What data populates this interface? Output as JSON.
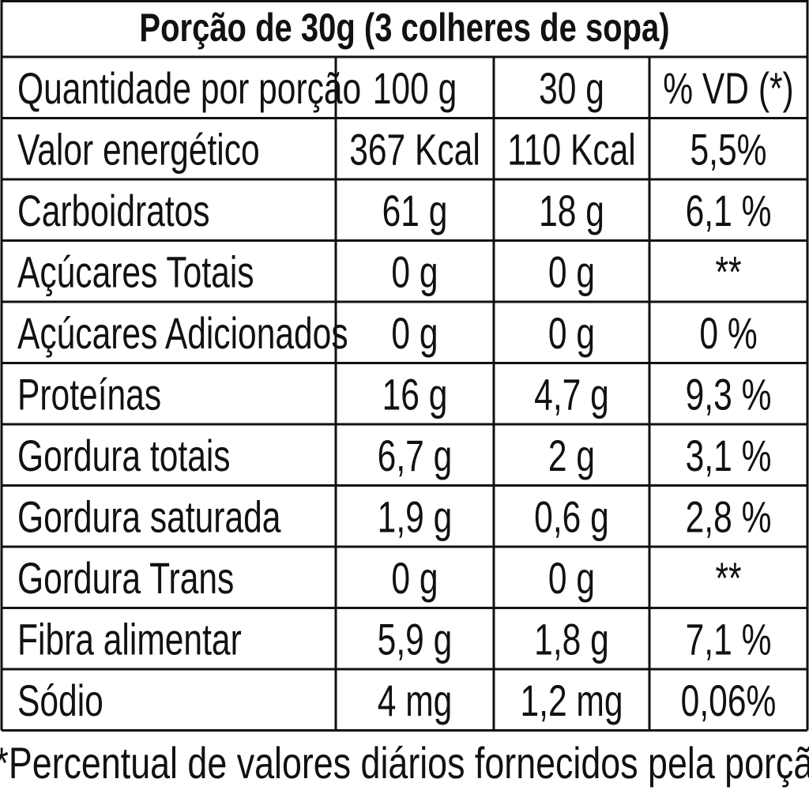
{
  "title": "Porção de 30g (3 colheres de sopa)",
  "table": {
    "header": [
      "Quantidade por porção",
      "100 g",
      "30 g",
      "% VD (*)"
    ],
    "rows": [
      [
        "Valor energético",
        "367 Kcal",
        "110 Kcal",
        "5,5%"
      ],
      [
        "Carboidratos",
        "61 g",
        "18 g",
        "6,1 %"
      ],
      [
        "Açúcares Totais",
        "0 g",
        "0 g",
        "**"
      ],
      [
        "Açúcares Adicionados",
        "0 g",
        "0 g",
        "0 %"
      ],
      [
        "Proteínas",
        "16 g",
        "4,7 g",
        "9,3 %"
      ],
      [
        "Gordura totais",
        "6,7 g",
        "2 g",
        "3,1 %"
      ],
      [
        "Gordura saturada",
        "1,9 g",
        "0,6 g",
        "2,8 %"
      ],
      [
        "Gordura Trans",
        "0 g",
        "0 g",
        "**"
      ],
      [
        "Fibra alimentar",
        "5,9 g",
        "1,8 g",
        "7,1 %"
      ],
      [
        "Sódio",
        "4 mg",
        "1,2 mg",
        "0,06%"
      ]
    ]
  },
  "footnote": "*Percentual de valores diários fornecidos pela porção."
}
